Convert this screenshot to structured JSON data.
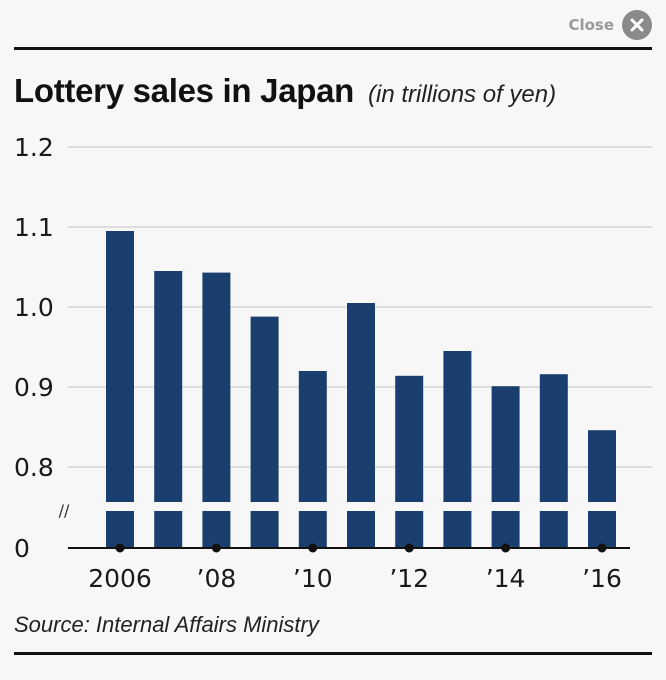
{
  "close": {
    "label": "Close"
  },
  "title": {
    "main": "Lottery sales in Japan",
    "sub": "(in trillions of yen)"
  },
  "source": "Source: Internal Affairs Ministry",
  "chart_data": {
    "type": "bar",
    "title": "Lottery sales in Japan",
    "subtitle": "(in trillions of yen)",
    "xlabel": "",
    "ylabel": "trillions of yen",
    "categories": [
      "2006",
      "2007",
      "2008",
      "2009",
      "2010",
      "2011",
      "2012",
      "2013",
      "2014",
      "2015",
      "2016"
    ],
    "values": [
      1.095,
      1.045,
      1.043,
      0.988,
      0.92,
      1.005,
      0.914,
      0.945,
      0.901,
      0.916,
      0.846
    ],
    "x_tick_labels": [
      "2006",
      "’08",
      "’10",
      "’12",
      "’14",
      "’16"
    ],
    "y_tick_labels": [
      "0",
      "0.8",
      "0.9",
      "1.0",
      "1.1",
      "1.2"
    ],
    "y_ticks": [
      0.8,
      0.9,
      1.0,
      1.1,
      1.2
    ],
    "ylim": [
      0.8,
      1.2
    ],
    "axis_break": true,
    "axis_break_symbol": "//",
    "grid": true,
    "color": "#1a3f6f"
  }
}
